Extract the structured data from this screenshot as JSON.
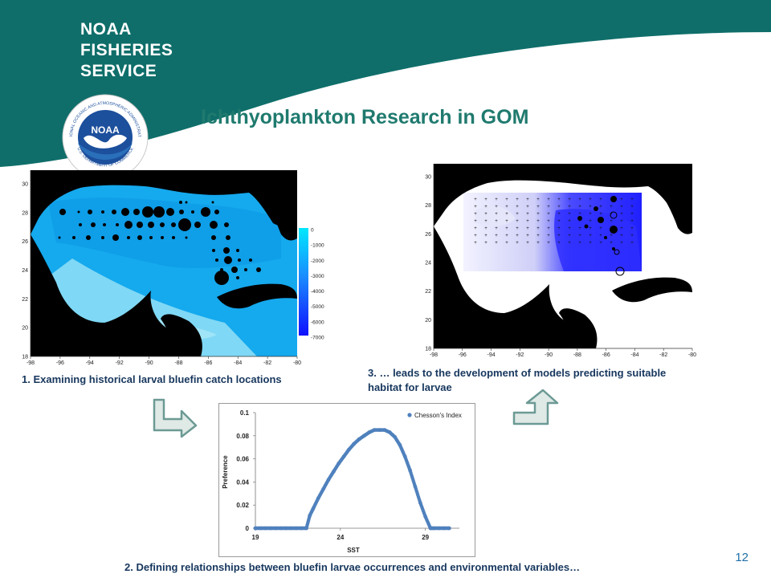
{
  "header": {
    "brand_line1": "NOAA",
    "brand_line2": "FISHERIES",
    "brand_line3": "SERVICE",
    "band_color": "#0f6e6a",
    "logo_center": "NOAA",
    "logo_ring_top": "NATIONAL OCEANIC AND ATMOSPHERIC ADMINISTRATION",
    "logo_ring_bottom": "U.S. DEPARTMENT OF COMMERCE"
  },
  "title": "Ichthyoplankton Research in GOM",
  "captions": {
    "step1": "1. Examining historical larval bluefin catch locations",
    "step2": "2. Defining relationships between bluefin larvae occurrences and environmental variables…",
    "step3_line1": "3. … leads to the development of models predicting suitable",
    "step3_line2": "habitat for larvae"
  },
  "page_number": "12",
  "map1": {
    "x_ticks": [
      "-98",
      "-96",
      "-94",
      "-92",
      "-90",
      "-88",
      "-86",
      "-84",
      "-82",
      "-80"
    ],
    "y_ticks": [
      "30",
      "28",
      "26",
      "24",
      "22",
      "20",
      "18"
    ],
    "colorbar_ticks": [
      "0",
      "-1000",
      "-2000",
      "-3000",
      "-4000",
      "-5000",
      "-6000",
      "-7000"
    ]
  },
  "map2": {
    "x_ticks": [
      "-98",
      "-96",
      "-94",
      "-92",
      "-90",
      "-88",
      "-86",
      "-84",
      "-82",
      "-80"
    ],
    "y_ticks": [
      "30",
      "28",
      "26",
      "24",
      "22",
      "20",
      "18"
    ]
  },
  "chart_data": {
    "type": "scatter",
    "xlabel": "SST",
    "ylabel": "Preference",
    "legend": "Chesson's Index",
    "legend_position": "top-right",
    "xlim": [
      19,
      31
    ],
    "ylim": [
      0,
      0.1
    ],
    "x_ticks": [
      "19",
      "24",
      "29"
    ],
    "y_ticks": [
      "0",
      "0.02",
      "0.04",
      "0.06",
      "0.08",
      "0.1"
    ],
    "grid": false,
    "series": [
      {
        "name": "Chesson's Index",
        "color": "#4f81bd",
        "x": [
          19.0,
          19.3,
          19.6,
          19.9,
          20.2,
          20.5,
          20.8,
          21.1,
          21.4,
          21.7,
          22.0,
          22.2,
          22.4,
          22.7,
          23.0,
          23.3,
          23.6,
          23.9,
          24.2,
          24.5,
          24.8,
          25.1,
          25.4,
          25.7,
          26.0,
          26.3,
          26.6,
          26.9,
          27.2,
          27.5,
          27.8,
          28.1,
          28.4,
          28.7,
          29.0,
          29.3,
          29.5,
          29.8,
          30.1,
          30.4
        ],
        "values": [
          0,
          0,
          0,
          0,
          0,
          0,
          0,
          0,
          0,
          0,
          0,
          0.011,
          0.017,
          0.026,
          0.034,
          0.042,
          0.049,
          0.056,
          0.062,
          0.068,
          0.073,
          0.077,
          0.08,
          0.083,
          0.085,
          0.085,
          0.085,
          0.083,
          0.079,
          0.072,
          0.062,
          0.05,
          0.036,
          0.022,
          0.01,
          0,
          0,
          0,
          0,
          0
        ]
      }
    ]
  }
}
